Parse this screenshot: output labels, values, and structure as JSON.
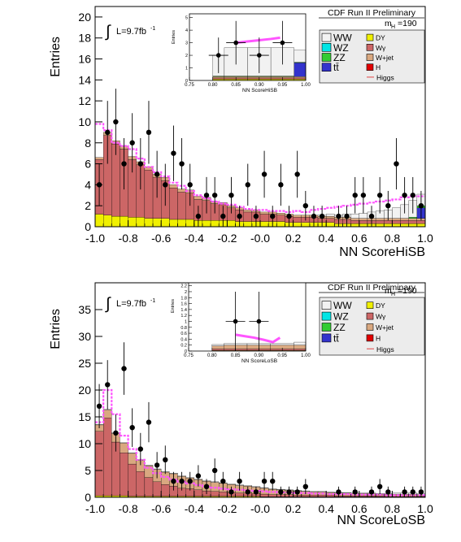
{
  "chart_data": [
    {
      "type": "bar",
      "panel": "top",
      "header": "CDF Run II Preliminary",
      "xlabel": "NN ScoreHiSB",
      "ylabel": "Entries",
      "lumi_prefix": "L=9.7fb",
      "lumi_sup": "-1",
      "mass_label": "m",
      "mass_sub": "H",
      "mass_value": "=190",
      "integral_symbol": "∫",
      "xlim": [
        -1.0,
        1.0
      ],
      "ylim": [
        0,
        21
      ],
      "x_ticks": [
        "-1.0",
        "-0.8",
        "-0.6",
        "-0.4",
        "-0.2",
        "-0.0",
        "0.2",
        "0.4",
        "0.6",
        "0.8",
        "1.0"
      ],
      "y_ticks": [
        "0",
        "2",
        "4",
        "6",
        "8",
        "10",
        "12",
        "14",
        "16",
        "18",
        "20"
      ],
      "y_tick_values": [
        0,
        2,
        4,
        6,
        8,
        10,
        12,
        14,
        16,
        18,
        20
      ],
      "n_bins": 40,
      "stack": {
        "DY": [
          1.2,
          1.1,
          1.0,
          1.0,
          0.9,
          0.9,
          0.8,
          0.8,
          0.8,
          0.7,
          0.7,
          0.7,
          0.6,
          0.6,
          0.6,
          0.6,
          0.6,
          0.5,
          0.5,
          0.5,
          0.5,
          0.5,
          0.5,
          0.4,
          0.4,
          0.4,
          0.4,
          0.4,
          0.4,
          0.3,
          0.3,
          0.3,
          0.3,
          0.3,
          0.3,
          0.3,
          0.3,
          0.3,
          0.3,
          0.3
        ],
        "Wy": [
          5.2,
          7.6,
          6.9,
          6.4,
          5.5,
          5.0,
          4.6,
          3.9,
          3.6,
          3.0,
          2.6,
          2.5,
          2.0,
          1.9,
          1.6,
          1.5,
          1.2,
          1.1,
          0.9,
          0.9,
          0.7,
          0.7,
          0.6,
          0.6,
          0.5,
          0.5,
          0.5,
          0.4,
          0.4,
          0.4,
          0.4,
          0.3,
          0.3,
          0.3,
          0.3,
          0.3,
          0.3,
          0.3,
          0.3,
          0.3
        ],
        "Wjet": [
          0.2,
          0.3,
          0.3,
          0.3,
          0.3,
          0.3,
          0.3,
          0.3,
          0.3,
          0.3,
          0.3,
          0.3,
          0.3,
          0.3,
          0.2,
          0.2,
          0.2,
          0.2,
          0.2,
          0.2,
          0.2,
          0.2,
          0.2,
          0.2,
          0.2,
          0.2,
          0.2,
          0.2,
          0.2,
          0.2,
          0.2,
          0.2,
          0.2,
          0.2,
          0.2,
          0.2,
          0.2,
          0.2,
          0.2,
          0.2
        ],
        "ttbar": [
          0,
          0,
          0,
          0,
          0,
          0,
          0,
          0,
          0,
          0,
          0,
          0,
          0,
          0,
          0,
          0,
          0,
          0,
          0,
          0,
          0,
          0,
          0,
          0,
          0,
          0,
          0,
          0,
          0,
          0,
          0,
          0,
          0,
          0,
          0,
          0,
          0,
          0,
          0,
          1.0
        ],
        "ZZ": [
          0,
          0,
          0,
          0,
          0,
          0,
          0,
          0,
          0,
          0,
          0,
          0,
          0,
          0,
          0,
          0,
          0,
          0,
          0,
          0,
          0,
          0,
          0,
          0,
          0,
          0,
          0,
          0,
          0,
          0,
          0,
          0,
          0,
          0,
          0,
          0,
          0,
          0,
          0.1,
          0.2
        ],
        "WZ": [
          0,
          0,
          0,
          0,
          0,
          0,
          0,
          0,
          0,
          0,
          0,
          0,
          0,
          0,
          0,
          0,
          0,
          0,
          0,
          0,
          0,
          0,
          0,
          0,
          0,
          0,
          0,
          0,
          0,
          0,
          0,
          0,
          0,
          0,
          0,
          0,
          0,
          0,
          0,
          0
        ],
        "WW": [
          0,
          0,
          0,
          0,
          0,
          0,
          0,
          0,
          0,
          0,
          0,
          0,
          0,
          0,
          0,
          0,
          0,
          0,
          0,
          0,
          0,
          0,
          0,
          0,
          0,
          0,
          0,
          0.1,
          0.2,
          0.2,
          0.3,
          0.4,
          0.5,
          0.6,
          0.7,
          0.8,
          1.0,
          1.3,
          1.6,
          1.1
        ]
      },
      "data_points": [
        4,
        9,
        10,
        6,
        8,
        6,
        9,
        5,
        4,
        7,
        6,
        4,
        1,
        3,
        3,
        1,
        3,
        1,
        4,
        1,
        5,
        1,
        4,
        1,
        5,
        2,
        1,
        1,
        0,
        1,
        1,
        3,
        3,
        1,
        3,
        2,
        6,
        3,
        3,
        2
      ],
      "higgs": [
        9.8,
        9.2,
        8.0,
        7.7,
        7.4,
        6.5,
        5.7,
        5.2,
        4.8,
        4.2,
        3.9,
        3.4,
        3.0,
        2.7,
        2.4,
        2.2,
        2.1,
        1.9,
        1.7,
        1.6,
        1.6,
        1.5,
        1.5,
        1.4,
        1.5,
        1.4,
        1.6,
        1.7,
        1.8,
        1.9,
        2.0,
        2.1,
        2.2,
        2.3,
        2.4,
        2.5,
        2.6,
        2.8,
        2.9,
        2.9
      ],
      "inset": {
        "xlabel": "NN ScoreHiSB",
        "ylabel": "Entries",
        "xlim": [
          0.75,
          1.0
        ],
        "ylim": [
          0,
          5.3
        ],
        "x_ticks": [
          "0.75",
          "0.80",
          "0.85",
          "0.90",
          "0.95",
          "1.00"
        ],
        "x_tick_values": [
          0.75,
          0.8,
          0.85,
          0.9,
          0.95,
          1.0
        ],
        "y_ticks": [
          "0",
          "1",
          "2",
          "3",
          "4",
          "5"
        ],
        "y_tick_values": [
          0,
          1,
          2,
          3,
          4,
          5
        ],
        "bin_edges": [
          0.8,
          0.825,
          0.875,
          0.925,
          0.975,
          1.0
        ],
        "stack": {
          "DY": [
            0.1,
            0.1,
            0.1,
            0.1,
            0.1
          ],
          "Wy": [
            0.1,
            0.1,
            0.1,
            0.1,
            0.1
          ],
          "Wjet": [
            0.1,
            0.1,
            0.1,
            0.1,
            0.1
          ],
          "ttbar": [
            0.0,
            0.0,
            0.0,
            0.0,
            1.1
          ],
          "ZZ": [
            0.05,
            0.05,
            0.05,
            0.05,
            0.05
          ],
          "WZ": [
            0.0,
            0.0,
            0.0,
            0.0,
            0.0
          ],
          "WW": [
            1.65,
            2.25,
            2.25,
            2.25,
            0.95
          ]
        },
        "data_x": [
          0.8125,
          0.85,
          0.9,
          0.95
        ],
        "data_y": [
          2,
          3,
          2,
          3
        ],
        "higgs_x": [
          0.85,
          0.875,
          0.9,
          0.925,
          0.945
        ],
        "higgs_y": [
          3.0,
          3.1,
          3.2,
          3.3,
          3.4
        ]
      },
      "legend": [
        {
          "label": "WW",
          "key": "WW"
        },
        {
          "label": "DY",
          "key": "DY"
        },
        {
          "label": "WZ",
          "key": "WZ"
        },
        {
          "label": "Wγ",
          "key": "Wy"
        },
        {
          "label": "ZZ",
          "key": "ZZ"
        },
        {
          "label": "W+jet",
          "key": "Wjet"
        },
        {
          "label": "tt̄",
          "key": "ttbar"
        },
        {
          "label": "H",
          "key": "H"
        },
        {
          "label": "",
          "key": "blank"
        },
        {
          "label": "Higgs",
          "key": "Higgs"
        }
      ]
    },
    {
      "type": "bar",
      "panel": "bottom",
      "header": "CDF Run II Preliminary",
      "xlabel": "NN ScoreLoSB",
      "ylabel": "Entries",
      "lumi_prefix": "L=9.7fb",
      "lumi_sup": "-1",
      "mass_label": "m",
      "mass_sub": "H",
      "mass_value": "=190",
      "integral_symbol": "∫",
      "xlim": [
        -1.0,
        1.0
      ],
      "ylim": [
        0,
        40
      ],
      "x_ticks": [
        "-1.0",
        "-0.8",
        "-0.6",
        "-0.4",
        "-0.2",
        "-0.0",
        "0.2",
        "0.4",
        "0.6",
        "0.8",
        "1.0"
      ],
      "y_ticks": [
        "0",
        "5",
        "10",
        "15",
        "20",
        "25",
        "30",
        "35"
      ],
      "y_tick_values": [
        0,
        5,
        10,
        15,
        20,
        25,
        30,
        35
      ],
      "n_bins": 40,
      "stack": {
        "DY": [
          0.3,
          0.3,
          0.3,
          0.3,
          0.2,
          0.2,
          0.2,
          0.2,
          0.2,
          0.2,
          0.2,
          0.2,
          0.2,
          0.2,
          0.2,
          0.2,
          0.2,
          0.2,
          0.2,
          0.2,
          0.1,
          0.1,
          0.1,
          0.1,
          0.1,
          0.1,
          0.1,
          0.1,
          0.1,
          0.1,
          0.1,
          0.1,
          0.1,
          0.1,
          0.1,
          0.1,
          0.1,
          0.1,
          0.1,
          0.1
        ],
        "Wy": [
          12.0,
          14.5,
          10.0,
          8.0,
          6.0,
          4.6,
          3.5,
          2.7,
          2.2,
          1.9,
          1.5,
          1.4,
          1.2,
          1.0,
          0.9,
          0.8,
          0.7,
          0.6,
          0.6,
          0.5,
          0.5,
          0.4,
          0.4,
          0.4,
          0.3,
          0.3,
          0.3,
          0.3,
          0.3,
          0.2,
          0.2,
          0.2,
          0.2,
          0.2,
          0.2,
          0.2,
          0.2,
          0.2,
          0.2,
          0.1
        ],
        "Wjet": [
          1.2,
          1.5,
          1.6,
          1.8,
          2.0,
          2.1,
          2.2,
          2.3,
          2.3,
          2.3,
          2.2,
          2.0,
          1.9,
          1.8,
          1.7,
          1.6,
          1.5,
          1.4,
          1.3,
          1.2,
          1.1,
          1.0,
          0.9,
          0.8,
          0.8,
          0.7,
          0.6,
          0.6,
          0.5,
          0.5,
          0.5,
          0.4,
          0.4,
          0.4,
          0.3,
          0.3,
          0.3,
          0.3,
          0.3,
          0.3
        ],
        "ttbar": [
          0,
          0,
          0,
          0,
          0,
          0,
          0,
          0,
          0,
          0,
          0,
          0,
          0,
          0,
          0,
          0,
          0,
          0,
          0,
          0,
          0,
          0,
          0,
          0,
          0,
          0,
          0,
          0,
          0,
          0,
          0,
          0,
          0,
          0,
          0,
          0,
          0,
          0,
          0,
          0
        ],
        "ZZ": [
          0,
          0,
          0,
          0,
          0,
          0,
          0,
          0,
          0,
          0,
          0,
          0,
          0,
          0,
          0,
          0,
          0,
          0,
          0,
          0,
          0,
          0,
          0,
          0,
          0,
          0,
          0,
          0,
          0,
          0,
          0,
          0,
          0,
          0,
          0,
          0,
          0,
          0,
          0,
          0
        ],
        "WZ": [
          0,
          0,
          0,
          0,
          0,
          0,
          0,
          0,
          0,
          0,
          0,
          0,
          0,
          0,
          0,
          0,
          0,
          0,
          0,
          0,
          0,
          0,
          0,
          0,
          0,
          0,
          0,
          0,
          0,
          0,
          0,
          0,
          0,
          0,
          0,
          0,
          0,
          0,
          0,
          0
        ],
        "WW": [
          0.1,
          0.1,
          0.1,
          0.1,
          0.1,
          0.1,
          0.1,
          0.1,
          0.1,
          0.1,
          0.1,
          0.1,
          0.1,
          0.1,
          0.1,
          0.1,
          0.1,
          0.1,
          0.1,
          0.1,
          0.1,
          0.1,
          0.1,
          0.1,
          0.1,
          0.1,
          0.1,
          0.1,
          0.1,
          0.1,
          0.1,
          0.1,
          0.1,
          0.1,
          0.1,
          0.1,
          0.2,
          0.2,
          0.2,
          0.2
        ]
      },
      "data_points": [
        17,
        21,
        12,
        24,
        13,
        9,
        14,
        6,
        7,
        3,
        3,
        3,
        4,
        2,
        5,
        3,
        1,
        3,
        1,
        1,
        3,
        3,
        1,
        1,
        1,
        2,
        0,
        0,
        0,
        1,
        0,
        1,
        0,
        1,
        2,
        1,
        0,
        1,
        1,
        1
      ],
      "higgs": [
        14.0,
        20.0,
        15.5,
        11.5,
        9.0,
        7.0,
        5.5,
        4.5,
        3.8,
        3.3,
        2.9,
        2.6,
        2.3,
        2.0,
        1.8,
        1.6,
        1.5,
        1.4,
        1.3,
        1.2,
        1.1,
        1.0,
        0.9,
        0.9,
        0.8,
        0.8,
        0.7,
        0.7,
        0.6,
        0.6,
        0.6,
        0.5,
        0.5,
        0.5,
        0.5,
        0.4,
        0.4,
        0.4,
        0.4,
        0.4
      ],
      "inset": {
        "xlabel": "NN ScoreLoSB",
        "ylabel": "Entries",
        "xlim": [
          0.75,
          1.0
        ],
        "ylim": [
          0,
          2.3
        ],
        "x_ticks": [
          "0.75",
          "0.80",
          "0.85",
          "0.90",
          "0.95",
          "1.00"
        ],
        "x_tick_values": [
          0.75,
          0.8,
          0.85,
          0.9,
          0.95,
          1.0
        ],
        "y_ticks": [
          "0",
          "0.2",
          "0.4",
          "0.6",
          "0.8",
          "1",
          "1.2",
          "1.4",
          "1.6",
          "1.8",
          "2",
          "2.2"
        ],
        "y_tick_values": [
          0,
          0.2,
          0.4,
          0.6,
          0.8,
          1.0,
          1.2,
          1.4,
          1.6,
          1.8,
          2.0,
          2.2
        ],
        "bin_edges": [
          0.8,
          0.825,
          0.875,
          0.925,
          0.975,
          1.0
        ],
        "stack": {
          "DY": [
            0.02,
            0.02,
            0.02,
            0.02,
            0.02
          ],
          "Wy": [
            0.05,
            0.05,
            0.05,
            0.05,
            0.05
          ],
          "Wjet": [
            0.1,
            0.13,
            0.13,
            0.13,
            0.13
          ],
          "ttbar": [
            0.0,
            0.0,
            0.0,
            0.0,
            0.0
          ],
          "ZZ": [
            0.0,
            0.0,
            0.0,
            0.0,
            0.0
          ],
          "WZ": [
            0.0,
            0.0,
            0.0,
            0.0,
            0.0
          ],
          "WW": [
            0.05,
            0.05,
            0.05,
            0.05,
            0.1
          ]
        },
        "data_x": [
          0.85,
          0.875,
          0.9
        ],
        "data_y": [
          1,
          0,
          1
        ],
        "higgs_x": [
          0.85,
          0.87,
          0.89,
          0.91,
          0.93,
          0.945
        ],
        "higgs_y": [
          0.55,
          0.5,
          0.45,
          0.38,
          0.3,
          0.45
        ]
      },
      "legend": [
        {
          "label": "WW",
          "key": "WW"
        },
        {
          "label": "DY",
          "key": "DY"
        },
        {
          "label": "WZ",
          "key": "WZ"
        },
        {
          "label": "Wγ",
          "key": "Wy"
        },
        {
          "label": "ZZ",
          "key": "ZZ"
        },
        {
          "label": "W+jet",
          "key": "Wjet"
        },
        {
          "label": "tt̄",
          "key": "ttbar"
        },
        {
          "label": "H",
          "key": "H"
        },
        {
          "label": "",
          "key": "blank"
        },
        {
          "label": "Higgs",
          "key": "Higgs"
        }
      ]
    }
  ],
  "colors": {
    "WW": "#f2f2f2",
    "WZ": "#00e5e5",
    "ZZ": "#33cc33",
    "ttbar": "#3333cc",
    "DY": "#f0f000",
    "Wy": "#cc6666",
    "Wjet": "#d9a880",
    "H": "#e00000",
    "Higgs": "#ff55ff",
    "data": "#000000"
  }
}
